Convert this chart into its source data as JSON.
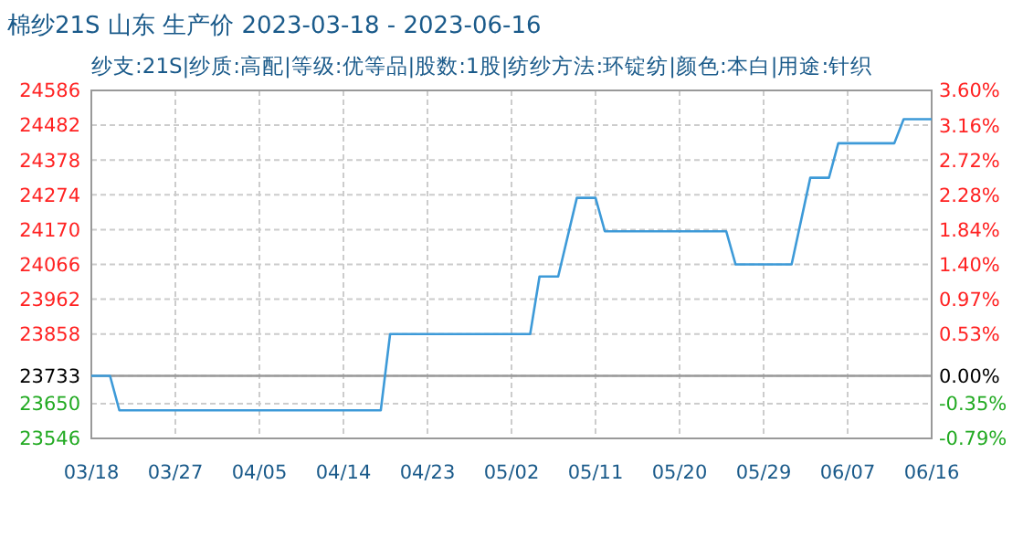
{
  "chart_data": {
    "type": "line",
    "title": "棉纱21S 山东 生产价 2023-03-18 - 2023-06-16",
    "subtitle": "纱支:21S|纱质:高配|等级:优等品|股数:1股|纺纱方法:环锭纺|颜色:本白|用途:针织",
    "x": [
      "2023-03-18",
      "2023-03-20",
      "2023-03-21",
      "2023-04-18",
      "2023-04-19",
      "2023-05-04",
      "2023-05-05",
      "2023-05-07",
      "2023-05-09",
      "2023-05-11",
      "2023-05-12",
      "2023-05-25",
      "2023-05-26",
      "2023-06-01",
      "2023-06-03",
      "2023-06-05",
      "2023-06-06",
      "2023-06-12",
      "2023-06-13",
      "2023-06-16"
    ],
    "series": [
      {
        "color": "#3d9ad8",
        "values": [
          23733,
          23733,
          23630,
          23630,
          23858,
          23858,
          24030,
          24030,
          24265,
          24265,
          24165,
          24165,
          24066,
          24066,
          24325,
          24325,
          24428,
          24428,
          24500,
          24500
        ]
      }
    ],
    "xlim": [
      "2023-03-18",
      "2023-06-16"
    ],
    "xticks": [
      {
        "value": "2023-03-18",
        "label": "03/18"
      },
      {
        "value": "2023-03-27",
        "label": "03/27"
      },
      {
        "value": "2023-04-05",
        "label": "04/05"
      },
      {
        "value": "2023-04-14",
        "label": "04/14"
      },
      {
        "value": "2023-04-23",
        "label": "04/23"
      },
      {
        "value": "2023-05-02",
        "label": "05/02"
      },
      {
        "value": "2023-05-11",
        "label": "05/11"
      },
      {
        "value": "2023-05-20",
        "label": "05/20"
      },
      {
        "value": "2023-05-29",
        "label": "05/29"
      },
      {
        "value": "2023-06-07",
        "label": "06/07"
      },
      {
        "value": "2023-06-16",
        "label": "06/16"
      }
    ],
    "ylim": [
      23546,
      24586
    ],
    "yticks": [
      23546,
      23650,
      23733,
      23858,
      23962,
      24066,
      24170,
      24274,
      24378,
      24482,
      24586
    ],
    "y2lim": [
      -0.79,
      3.6
    ],
    "y2ticks": [
      {
        "value": -0.79,
        "label": "-0.79%"
      },
      {
        "value": -0.35,
        "label": "-0.35%"
      },
      {
        "value": 0,
        "label": "0.00%"
      },
      {
        "value": 0.53,
        "label": "0.53%"
      },
      {
        "value": 0.97,
        "label": "0.97%"
      },
      {
        "value": 1.4,
        "label": "1.40%"
      },
      {
        "value": 1.84,
        "label": "1.84%"
      },
      {
        "value": 2.28,
        "label": "2.28%"
      },
      {
        "value": 2.72,
        "label": "2.72%"
      },
      {
        "value": 3.16,
        "label": "3.16%"
      },
      {
        "value": 3.6,
        "label": "3.60%"
      }
    ],
    "ref_lines": [
      {
        "axis": "y",
        "value": 23733,
        "color": "#999999"
      }
    ],
    "grid": true,
    "line_style": "solid"
  }
}
